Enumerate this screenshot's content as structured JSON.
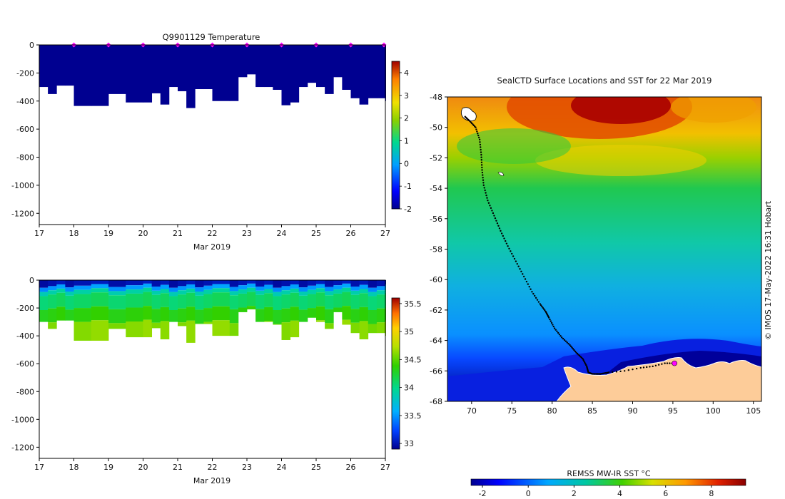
{
  "chart_data": [
    {
      "type": "heatmap",
      "title": "Q9901129  Temperature",
      "xlabel": "Mar 2019",
      "ylabel": "",
      "x_ticks": [
        "17",
        "18",
        "19",
        "20",
        "21",
        "22",
        "23",
        "24",
        "25",
        "26",
        "27"
      ],
      "y_ticks": [
        "0",
        "-200",
        "-400",
        "-600",
        "-800",
        "-1000",
        "-1200"
      ],
      "xlim": [
        17,
        27
      ],
      "ylim": [
        -1280,
        0
      ],
      "colorbar": {
        "ticks": [
          "4",
          "3",
          "2",
          "1",
          "0",
          "-1",
          "-2"
        ],
        "range": [
          -2,
          4.5
        ]
      },
      "profile_days": [
        17.0,
        17.25,
        17.5,
        17.75,
        18.0,
        18.5,
        19.0,
        19.5,
        20.0,
        20.25,
        20.5,
        20.75,
        21.0,
        21.25,
        21.5,
        21.75,
        22.0,
        22.5,
        22.75,
        23.0,
        23.25,
        23.5,
        23.75,
        24.0,
        24.25,
        24.5,
        24.75,
        25.0,
        25.25,
        25.5,
        25.75,
        26.0,
        26.25,
        26.5,
        26.75,
        27.0
      ],
      "profile_max_depth": [
        -300,
        -350,
        -290,
        -290,
        -435,
        -435,
        -350,
        -410,
        -410,
        -345,
        -425,
        -300,
        -330,
        -450,
        -315,
        -315,
        -400,
        -400,
        -230,
        -210,
        -300,
        -300,
        -320,
        -430,
        -410,
        -300,
        -270,
        -300,
        -350,
        -230,
        -320,
        -380,
        -425,
        -380,
        -380,
        -400
      ],
      "surface_markers_days": [
        18,
        19,
        20,
        21,
        22,
        23,
        24,
        25,
        26,
        27
      ],
      "value_description": "Temperature cold (~ -1.8) throughout the water column"
    },
    {
      "type": "heatmap",
      "title": "",
      "xlabel": "Mar 2019",
      "ylabel": "",
      "x_ticks": [
        "17",
        "18",
        "19",
        "20",
        "21",
        "22",
        "23",
        "24",
        "25",
        "26",
        "27"
      ],
      "y_ticks": [
        "0",
        "-200",
        "-400",
        "-600",
        "-800",
        "-1000",
        "-1200"
      ],
      "xlim": [
        17,
        27
      ],
      "ylim": [
        -1280,
        0
      ],
      "colorbar": {
        "ticks": [
          "35.5",
          "35",
          "34.5",
          "34",
          "33.5",
          "33"
        ],
        "range": [
          32.9,
          35.6
        ]
      },
      "layers": [
        {
          "top": 0,
          "bottom": -40,
          "value": 33.0
        },
        {
          "top": -40,
          "bottom": -70,
          "value": 33.5
        },
        {
          "top": -70,
          "bottom": -100,
          "value": 33.9
        },
        {
          "top": -100,
          "bottom": -200,
          "value": 34.1
        },
        {
          "top": -200,
          "bottom": -300,
          "value": 34.35
        },
        {
          "top": -300,
          "bottom": -460,
          "value": 34.6
        }
      ]
    },
    {
      "type": "map",
      "title": "SealCTD Surface Locations and SST for 22 Mar 2019",
      "x_ticks": [
        "70",
        "75",
        "80",
        "85",
        "90",
        "95",
        "100",
        "105"
      ],
      "y_ticks": [
        "-48",
        "-50",
        "-52",
        "-54",
        "-56",
        "-58",
        "-60",
        "-62",
        "-64",
        "-66",
        "-68"
      ],
      "xlim": [
        67,
        106
      ],
      "ylim": [
        -68,
        -48
      ],
      "track_lon": [
        69.2,
        69.8,
        70.5,
        71.0,
        71.2,
        71.3,
        71.5,
        72.0,
        72.8,
        73.6,
        74.5,
        75.5,
        76.5,
        77.5,
        78.5,
        79.2,
        79.6,
        80.3,
        81.2,
        82.2,
        83.0,
        83.8,
        84.3,
        84.5,
        85.0,
        86.0,
        87.0
      ],
      "track_lat": [
        -49.3,
        -49.6,
        -50.0,
        -50.8,
        -51.8,
        -52.8,
        -53.8,
        -54.8,
        -55.8,
        -56.8,
        -57.8,
        -58.8,
        -59.8,
        -60.8,
        -61.6,
        -62.1,
        -62.5,
        -63.2,
        -63.8,
        -64.3,
        -64.8,
        -65.2,
        -65.7,
        -66.1,
        -66.2,
        -66.2,
        -66.1
      ],
      "current_position": {
        "lon": 95.2,
        "lat": -65.5
      },
      "colorbar_label": "REMSS MW-IR SST °C",
      "colorbar_ticks": [
        "-2",
        "0",
        "2",
        "4",
        "6",
        "8"
      ],
      "colorbar_range": [
        -2.5,
        9.5
      ]
    }
  ],
  "credit": "© IMOS 17-May-2022 16:31 Hobart"
}
